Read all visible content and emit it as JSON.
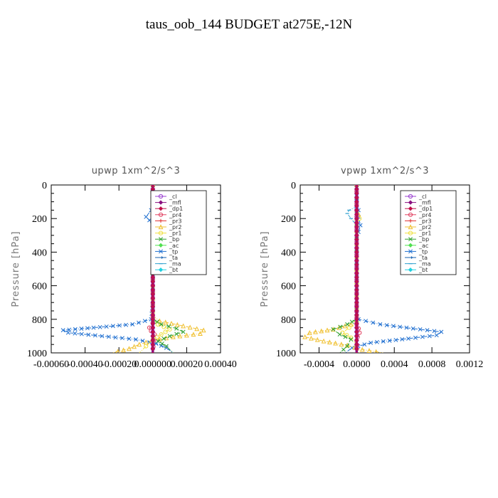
{
  "page": {
    "title": "taus_oob_144  BUDGET at275E,-12N"
  },
  "legend_items": [
    {
      "name": "_cl",
      "color": "#9a3fd0",
      "marker": "circle"
    },
    {
      "name": "_mfl",
      "color": "#8a1080",
      "marker": "diamond"
    },
    {
      "name": "_dp1",
      "color": "#c0104a",
      "marker": "diamond"
    },
    {
      "name": "_pr4",
      "color": "#e04060",
      "marker": "circle"
    },
    {
      "name": "_pr3",
      "color": "#e03030",
      "marker": "plus"
    },
    {
      "name": "_pr2",
      "color": "#f0c030",
      "marker": "triangle"
    },
    {
      "name": "_pr1",
      "color": "#f0e040",
      "marker": "circle"
    },
    {
      "name": "_bp",
      "color": "#30a030",
      "marker": "cross"
    },
    {
      "name": "_ac",
      "color": "#50e050",
      "marker": "diamond"
    },
    {
      "name": "_tp",
      "color": "#1f6fd0",
      "marker": "cross"
    },
    {
      "name": "_ta",
      "color": "#1560b0",
      "marker": "arrow"
    },
    {
      "name": "_ma",
      "color": "#30a0d0",
      "marker": "dash"
    },
    {
      "name": "_bt",
      "color": "#20d0e0",
      "marker": "diamond"
    }
  ],
  "chart_data": [
    {
      "type": "line",
      "title": "upwp   1xm^2/s^3",
      "ylabel": "Pressure [hPa]",
      "xlim": [
        -0.0006,
        0.0004
      ],
      "ylim": [
        1000,
        0
      ],
      "xticks": [
        "-0.00060",
        "-0.00040",
        "-0.00020",
        "0.000000",
        "0.00020",
        "0.00040"
      ],
      "yticks": [
        "0",
        "200",
        "400",
        "600",
        "800",
        "1000"
      ],
      "series": [
        {
          "name": "_tp",
          "x": [
            0,
            0,
            -1e-05,
            -4e-05,
            -2e-05,
            0,
            0,
            -1e-05,
            -0.00012,
            -0.00035,
            -0.00053,
            -0.0005,
            -0.0003,
            -0.0001,
            2e-05,
            8e-05,
            0.00012
          ],
          "y": [
            0,
            100,
            150,
            190,
            210,
            250,
            700,
            800,
            830,
            850,
            865,
            880,
            900,
            920,
            945,
            970,
            1000
          ]
        },
        {
          "name": "_pr2",
          "x": [
            0,
            0,
            2e-05,
            0,
            2e-05,
            0,
            0,
            4e-05,
            0.00018,
            0.0003,
            0.00028,
            0.00012,
            0,
            -8e-05,
            -0.00014,
            -0.00024
          ],
          "y": [
            0,
            100,
            140,
            160,
            190,
            220,
            780,
            810,
            840,
            865,
            885,
            905,
            925,
            950,
            975,
            1000
          ]
        },
        {
          "name": "_pr1",
          "x": [
            0,
            0,
            1e-05,
            0,
            0,
            3e-05,
            0.0001,
            5e-05,
            0,
            -4e-05,
            -8e-05
          ],
          "y": [
            0,
            130,
            150,
            180,
            800,
            830,
            860,
            890,
            920,
            960,
            1000
          ]
        },
        {
          "name": "_bp",
          "x": [
            0,
            0,
            5e-05,
            0.00014,
            0.00018,
            0.0001,
            3e-05,
            8e-05,
            0.00012
          ],
          "y": [
            0,
            800,
            830,
            855,
            875,
            900,
            930,
            960,
            1000
          ]
        },
        {
          "name": "_pr4",
          "x": [
            0,
            0,
            -2e-05,
            -1e-05,
            1e-05,
            0
          ],
          "y": [
            0,
            820,
            850,
            870,
            890,
            1000
          ]
        },
        {
          "name": "_cl",
          "x": [
            0,
            0
          ],
          "y": [
            0,
            1000
          ]
        },
        {
          "name": "_mfl",
          "x": [
            0,
            0
          ],
          "y": [
            0,
            1000
          ]
        },
        {
          "name": "_dp1",
          "x": [
            0,
            0
          ],
          "y": [
            0,
            1000
          ]
        }
      ]
    },
    {
      "type": "line",
      "title": "vpwp   1xm^2/s^3",
      "ylabel": "Pressure [hPa]",
      "xlim": [
        -0.0006,
        0.0012
      ],
      "ylim": [
        1000,
        0
      ],
      "xticks": [
        "-0.0004",
        "0.0000",
        "0.0004",
        "0.0008",
        "0.0012"
      ],
      "yticks": [
        "0",
        "200",
        "400",
        "600",
        "800",
        "1000"
      ],
      "series": [
        {
          "name": "_tp",
          "x": [
            0,
            0,
            2e-05,
            2e-05,
            4e-05,
            2e-05,
            0,
            0,
            2e-05,
            0.00025,
            0.0006,
            0.0009,
            0.00085,
            0.00055,
            0.00015,
            -5e-05,
            -0.00012
          ],
          "y": [
            0,
            100,
            150,
            190,
            240,
            280,
            320,
            780,
            800,
            830,
            855,
            875,
            895,
            915,
            940,
            970,
            1000
          ]
        },
        {
          "name": "_pr2",
          "x": [
            0,
            0,
            2e-05,
            0,
            0,
            -6e-05,
            -0.00025,
            -0.0005,
            -0.00055,
            -0.00035,
            -0.0001,
            6e-05,
            0.00028
          ],
          "y": [
            0,
            150,
            175,
            200,
            800,
            830,
            860,
            880,
            905,
            930,
            955,
            980,
            1000
          ]
        },
        {
          "name": "_pr1",
          "x": [
            0,
            0,
            3e-05,
            0,
            0,
            -8e-05,
            -0.00015,
            -6e-05,
            0,
            3e-05
          ],
          "y": [
            0,
            150,
            200,
            240,
            820,
            850,
            880,
            910,
            950,
            1000
          ]
        },
        {
          "name": "_bp",
          "x": [
            0,
            0,
            -0.0001,
            -0.00025,
            -0.00018,
            -6e-05,
            -0.0001,
            -0.00018
          ],
          "y": [
            0,
            800,
            830,
            860,
            890,
            920,
            960,
            1000
          ]
        },
        {
          "name": "_ma",
          "x": [
            0,
            0,
            -8e-05,
            -0.0001,
            -6e-05,
            0
          ],
          "y": [
            0,
            130,
            150,
            170,
            200,
            240
          ]
        },
        {
          "name": "_pr4",
          "x": [
            0,
            0,
            2e-05,
            3e-05,
            1e-05,
            0
          ],
          "y": [
            0,
            830,
            855,
            880,
            905,
            1000
          ]
        },
        {
          "name": "_cl",
          "x": [
            0,
            0
          ],
          "y": [
            0,
            1000
          ]
        },
        {
          "name": "_mfl",
          "x": [
            0,
            0
          ],
          "y": [
            0,
            1000
          ]
        },
        {
          "name": "_dp1",
          "x": [
            0,
            0
          ],
          "y": [
            0,
            1000
          ]
        }
      ]
    }
  ]
}
